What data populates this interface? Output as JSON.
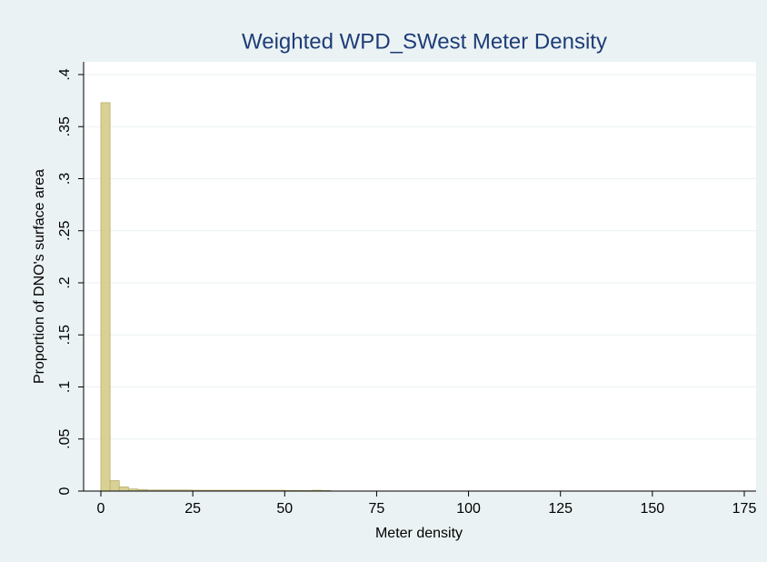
{
  "chart_data": {
    "type": "histogram",
    "title": "Weighted WPD_SWest Meter Density",
    "x_label": "Meter density",
    "y_label": "Proportion of DNO's surface area",
    "bins": [
      0,
      2.5,
      5,
      7.5,
      10,
      12.5,
      15,
      17.5,
      20,
      22.5,
      25,
      27.5,
      30,
      32.5,
      35,
      37.5,
      40,
      42.5,
      45,
      47.5,
      50,
      52.5,
      55,
      57.5,
      60,
      62.5
    ],
    "counts": [
      0.373,
      0.01,
      0.004,
      0.002,
      0.0015,
      0.001,
      0.001,
      0.001,
      0.001,
      0.001,
      0.0008,
      0.0008,
      0.0008,
      0.0008,
      0.0008,
      0.0008,
      0.0008,
      0.0008,
      0.0008,
      0.0008,
      0.0006,
      0.0006,
      0.0005,
      0.0008,
      0.0005
    ],
    "color": "#d9d193",
    "xlim": [
      0,
      175
    ],
    "xticks": [
      0,
      25,
      50,
      75,
      100,
      125,
      150,
      175
    ],
    "ylim": [
      0,
      0.4
    ],
    "yticks": [
      0,
      {
        "value": 0.05,
        "label": ".05"
      },
      {
        "value": 0.1,
        "label": ".1"
      },
      {
        "value": 0.15,
        "label": ".15"
      },
      {
        "value": 0.2,
        "label": ".2"
      },
      {
        "value": 0.25,
        "label": ".25"
      },
      {
        "value": 0.3,
        "label": ".3"
      },
      {
        "value": 0.35,
        "label": ".35"
      },
      {
        "value": 0.4,
        "label": ".4"
      }
    ],
    "grid": true
  }
}
